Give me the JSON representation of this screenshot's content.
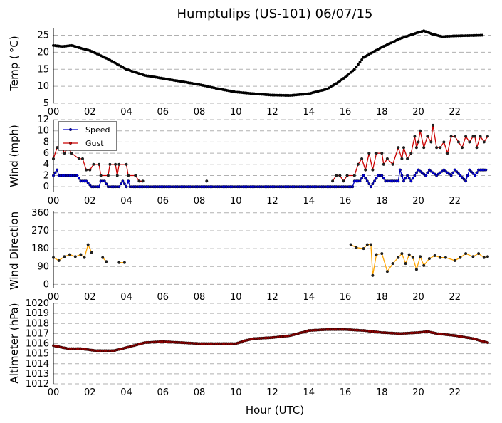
{
  "chart_data": {
    "type": "line",
    "title": "Humptulips (US-101) 06/07/15",
    "xlabel": "Hour (UTC)",
    "xlim": [
      0,
      24
    ],
    "xticks": [
      "00",
      "02",
      "04",
      "06",
      "08",
      "10",
      "12",
      "14",
      "16",
      "18",
      "20",
      "22"
    ],
    "panels": [
      {
        "id": "temp",
        "ylabel": "Temp ($^\\circ$C)",
        "ylim": [
          5,
          27
        ],
        "yticks": [
          "5",
          "10",
          "15",
          "20",
          "25"
        ],
        "grid": true,
        "series": [
          {
            "name": "",
            "color": "#000000",
            "anchors": [
              [
                0,
                22
              ],
              [
                0.5,
                21.7
              ],
              [
                1,
                22
              ],
              [
                1.5,
                21.2
              ],
              [
                2,
                20.5
              ],
              [
                3,
                18
              ],
              [
                4,
                15
              ],
              [
                5,
                13.2
              ],
              [
                6,
                12.3
              ],
              [
                7,
                11.4
              ],
              [
                8,
                10.5
              ],
              [
                9,
                9.3
              ],
              [
                10,
                8.3
              ],
              [
                11,
                7.8
              ],
              [
                12,
                7.4
              ],
              [
                13,
                7.3
              ],
              [
                14,
                7.8
              ],
              [
                15,
                9.2
              ],
              [
                15.5,
                10.8
              ],
              [
                16,
                12.7
              ],
              [
                16.5,
                15
              ],
              [
                17,
                18.5
              ],
              [
                18,
                21.5
              ],
              [
                19,
                24
              ],
              [
                19.8,
                25.5
              ],
              [
                20.3,
                26.3
              ],
              [
                20.8,
                25.3
              ],
              [
                21.3,
                24.6
              ],
              [
                22,
                24.8
              ],
              [
                23.5,
                25
              ]
            ]
          }
        ]
      },
      {
        "id": "wind",
        "ylabel": "Wind (mph)",
        "ylim": [
          -1,
          12
        ],
        "yticks": [
          "0",
          "2",
          "4",
          "6",
          "8",
          "10",
          "12"
        ],
        "grid": true,
        "legend": "upper-left",
        "series": [
          {
            "name": "Speed",
            "color": "#0000cc",
            "anchors": [
              [
                0,
                2
              ],
              [
                0.2,
                3
              ],
              [
                0.3,
                2
              ],
              [
                1.3,
                2
              ],
              [
                1.5,
                1
              ],
              [
                1.8,
                1
              ],
              [
                2.1,
                0
              ],
              [
                2.5,
                0
              ],
              [
                2.6,
                1
              ],
              [
                2.8,
                1
              ],
              [
                3,
                0
              ],
              [
                3.6,
                0
              ],
              [
                3.8,
                1
              ],
              [
                4,
                0
              ],
              [
                4.1,
                1
              ],
              [
                4.2,
                0
              ],
              [
                16.4,
                0
              ],
              [
                16.5,
                1
              ],
              [
                16.8,
                1
              ],
              [
                17,
                2
              ],
              [
                17.2,
                1
              ],
              [
                17.4,
                0
              ],
              [
                17.6,
                1
              ],
              [
                17.8,
                2
              ],
              [
                18,
                2
              ],
              [
                18.2,
                1
              ],
              [
                18.9,
                1
              ],
              [
                19,
                3
              ],
              [
                19.2,
                1
              ],
              [
                19.4,
                2
              ],
              [
                19.6,
                1
              ],
              [
                19.8,
                2
              ],
              [
                20,
                3
              ],
              [
                20.4,
                2
              ],
              [
                20.6,
                3
              ],
              [
                21,
                2
              ],
              [
                21.4,
                3
              ],
              [
                21.8,
                2
              ],
              [
                22,
                3
              ],
              [
                22.6,
                1
              ],
              [
                22.8,
                3
              ],
              [
                23.1,
                2
              ],
              [
                23.3,
                3
              ],
              [
                23.7,
                3
              ]
            ]
          },
          {
            "name": "Gust",
            "color": "#cc0000",
            "segments": [
              [
                [
                  0,
                  5
                ],
                [
                  0.2,
                  7
                ],
                [
                  0.4,
                  8
                ],
                [
                  0.6,
                  6
                ],
                [
                  0.8,
                  7
                ],
                [
                  1,
                  6
                ],
                [
                  1.4,
                  5
                ],
                [
                  1.6,
                  5
                ],
                [
                  1.8,
                  3
                ],
                [
                  2,
                  3
                ],
                [
                  2.2,
                  4
                ],
                [
                  2.5,
                  4
                ],
                [
                  2.6,
                  2
                ],
                [
                  3,
                  2
                ],
                [
                  3.1,
                  4
                ],
                [
                  3.4,
                  4
                ],
                [
                  3.5,
                  2
                ],
                [
                  3.6,
                  4
                ],
                [
                  4,
                  4
                ],
                [
                  4.1,
                  2
                ],
                [
                  4.5,
                  2
                ],
                [
                  4.7,
                  1
                ],
                [
                  4.9,
                  1
                ]
              ],
              [
                [
                  8.4,
                  1
                ]
              ],
              [
                [
                  15.3,
                  1
                ],
                [
                  15.5,
                  2
                ],
                [
                  15.7,
                  2
                ],
                [
                  15.9,
                  1
                ],
                [
                  16.1,
                  2
                ],
                [
                  16.5,
                  2
                ],
                [
                  16.7,
                  4
                ],
                [
                  16.9,
                  5
                ],
                [
                  17.1,
                  3
                ],
                [
                  17.3,
                  6
                ],
                [
                  17.5,
                  3
                ],
                [
                  17.7,
                  6
                ],
                [
                  18,
                  6
                ],
                [
                  18.1,
                  4
                ],
                [
                  18.3,
                  5
                ],
                [
                  18.6,
                  4
                ],
                [
                  18.9,
                  7
                ],
                [
                  19.1,
                  5
                ],
                [
                  19.2,
                  7
                ],
                [
                  19.4,
                  5
                ],
                [
                  19.6,
                  6
                ],
                [
                  19.8,
                  9
                ],
                [
                  19.9,
                  7
                ],
                [
                  20,
                  8
                ],
                [
                  20.1,
                  10
                ],
                [
                  20.3,
                  7
                ],
                [
                  20.5,
                  9
                ],
                [
                  20.7,
                  8
                ],
                [
                  20.8,
                  11
                ],
                [
                  21,
                  7
                ],
                [
                  21.2,
                  7
                ],
                [
                  21.4,
                  8
                ],
                [
                  21.6,
                  6
                ],
                [
                  21.8,
                  9
                ],
                [
                  22,
                  9
                ],
                [
                  22.2,
                  8
                ],
                [
                  22.4,
                  7
                ],
                [
                  22.6,
                  9
                ],
                [
                  22.8,
                  8
                ],
                [
                  23,
                  9
                ],
                [
                  23.1,
                  9
                ],
                [
                  23.2,
                  7
                ],
                [
                  23.4,
                  9
                ],
                [
                  23.6,
                  8
                ],
                [
                  23.8,
                  9
                ]
              ]
            ]
          }
        ]
      },
      {
        "id": "dir",
        "ylabel": "Wind Direction",
        "ylim": [
          -20,
          370
        ],
        "yticks": [
          "0",
          "90",
          "180",
          "270",
          "360"
        ],
        "grid": true,
        "series": [
          {
            "name": "",
            "color": "#ffa500",
            "segments": [
              [
                [
                  0,
                  135
                ],
                [
                  0.3,
                  120
                ],
                [
                  0.6,
                  140
                ],
                [
                  0.9,
                  150
                ],
                [
                  1.2,
                  140
                ],
                [
                  1.5,
                  150
                ],
                [
                  1.7,
                  135
                ],
                [
                  1.9,
                  200
                ],
                [
                  2.1,
                  160
                ]
              ],
              [
                [
                  2.7,
                  135
                ],
                [
                  2.9,
                  115
                ]
              ],
              [
                [
                  3.6,
                  110
                ],
                [
                  3.9,
                  110
                ]
              ],
              [
                [
                  16.3,
                  200
                ],
                [
                  16.6,
                  185
                ],
                [
                  17,
                  180
                ],
                [
                  17.2,
                  200
                ],
                [
                  17.4,
                  200
                ],
                [
                  17.5,
                  45
                ],
                [
                  17.7,
                  150
                ],
                [
                  18,
                  155
                ],
                [
                  18.3,
                  65
                ],
                [
                  18.6,
                  105
                ],
                [
                  18.9,
                  135
                ],
                [
                  19.1,
                  155
                ],
                [
                  19.3,
                  105
                ],
                [
                  19.5,
                  150
                ],
                [
                  19.7,
                  135
                ],
                [
                  19.9,
                  75
                ],
                [
                  20.1,
                  140
                ],
                [
                  20.3,
                  95
                ],
                [
                  20.6,
                  130
                ],
                [
                  20.9,
                  145
                ],
                [
                  21.2,
                  135
                ],
                [
                  21.5,
                  135
                ],
                [
                  22,
                  120
                ],
                [
                  22.3,
                  135
                ],
                [
                  22.6,
                  155
                ],
                [
                  23,
                  140
                ],
                [
                  23.3,
                  155
                ],
                [
                  23.6,
                  135
                ],
                [
                  23.8,
                  140
                ]
              ]
            ]
          }
        ]
      },
      {
        "id": "alt",
        "ylabel": "Altimeter (hPa)",
        "ylim": [
          1012,
          1020
        ],
        "yticks": [
          "1012",
          "1013",
          "1014",
          "1015",
          "1016",
          "1017",
          "1018",
          "1019",
          "1020"
        ],
        "grid": true,
        "series": [
          {
            "name": "",
            "color": "#8b0000",
            "anchors": [
              [
                0,
                1015.8
              ],
              [
                0.8,
                1015.5
              ],
              [
                1.5,
                1015.5
              ],
              [
                2.3,
                1015.3
              ],
              [
                3.3,
                1015.3
              ],
              [
                4,
                1015.6
              ],
              [
                5,
                1016.1
              ],
              [
                6,
                1016.2
              ],
              [
                7,
                1016.1
              ],
              [
                8,
                1016.0
              ],
              [
                9,
                1016.0
              ],
              [
                10,
                1016.0
              ],
              [
                10.5,
                1016.3
              ],
              [
                11,
                1016.5
              ],
              [
                12,
                1016.6
              ],
              [
                13,
                1016.8
              ],
              [
                14,
                1017.3
              ],
              [
                15,
                1017.4
              ],
              [
                16,
                1017.4
              ],
              [
                17,
                1017.3
              ],
              [
                18,
                1017.1
              ],
              [
                19,
                1017.0
              ],
              [
                20,
                1017.1
              ],
              [
                20.5,
                1017.2
              ],
              [
                21,
                1017.0
              ],
              [
                22,
                1016.8
              ],
              [
                23,
                1016.5
              ],
              [
                23.8,
                1016.1
              ]
            ]
          }
        ]
      }
    ]
  }
}
